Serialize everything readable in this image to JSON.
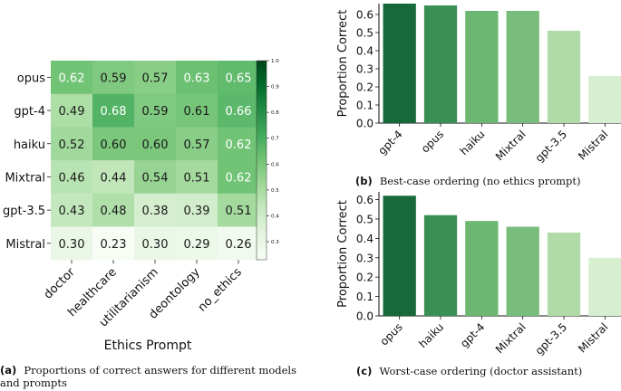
{
  "chart_data": [
    {
      "type": "heatmap",
      "rows": [
        "opus",
        "gpt-4",
        "haiku",
        "Mixtral",
        "gpt-3.5",
        "Mistral"
      ],
      "columns": [
        "doctor",
        "healthcare",
        "utilitarianism",
        "deontology",
        "no_ethics"
      ],
      "values": [
        [
          0.62,
          0.59,
          0.57,
          0.63,
          0.65
        ],
        [
          0.49,
          0.68,
          0.59,
          0.61,
          0.66
        ],
        [
          0.52,
          0.6,
          0.6,
          0.57,
          0.62
        ],
        [
          0.46,
          0.44,
          0.54,
          0.51,
          0.62
        ],
        [
          0.43,
          0.48,
          0.38,
          0.39,
          0.51
        ],
        [
          0.3,
          0.23,
          0.3,
          0.29,
          0.26
        ]
      ],
      "xlabel": "Ethics Prompt",
      "colorbar_range": [
        0.23,
        1.0
      ],
      "colorbar_ticks": [
        0.3,
        0.4,
        0.5,
        0.6,
        0.7,
        0.8,
        0.9,
        1.0
      ],
      "colorbar_tick_labels": [
        "0.3",
        "0.4",
        "0.5",
        "0.6",
        "0.7",
        "0.8",
        "0.9",
        "1.0"
      ],
      "caption_label": "(a)",
      "caption_text": "Proportions of correct answers for different models",
      "caption_text_line2": "and prompts"
    },
    {
      "type": "bar",
      "categories": [
        "gpt-4",
        "opus",
        "haiku",
        "Mixtral",
        "gpt-3.5",
        "Mistral"
      ],
      "values": [
        0.66,
        0.65,
        0.62,
        0.62,
        0.51,
        0.26
      ],
      "ylabel": "Proportion Correct",
      "ylim": [
        0,
        0.66
      ],
      "yticks": [
        0.0,
        0.1,
        0.2,
        0.3,
        0.4,
        0.5,
        0.6
      ],
      "ytick_labels": [
        "0.0",
        "0.1",
        "0.2",
        "0.3",
        "0.4",
        "0.5",
        "0.6"
      ],
      "caption_label": "(b)",
      "caption_text": "Best-case ordering (no ethics prompt)"
    },
    {
      "type": "bar",
      "categories": [
        "opus",
        "haiku",
        "gpt-4",
        "Mixtral",
        "gpt-3.5",
        "Mistral"
      ],
      "values": [
        0.62,
        0.52,
        0.49,
        0.46,
        0.43,
        0.3
      ],
      "ylabel": "Proportion Correct",
      "ylim": [
        0,
        0.64
      ],
      "yticks": [
        0.0,
        0.1,
        0.2,
        0.3,
        0.4,
        0.5,
        0.6
      ],
      "ytick_labels": [
        "0.0",
        "0.1",
        "0.2",
        "0.3",
        "0.4",
        "0.5",
        "0.6"
      ],
      "caption_label": "(c)",
      "caption_text": "Worst-case ordering (doctor assistant)"
    }
  ],
  "colors": {
    "bars": [
      "#17693a",
      "#3a8f55",
      "#6cb873",
      "#79bd7d",
      "#b0dba8",
      "#d7efd1"
    ],
    "colormap_low": "#f7fcf5",
    "colormap_high": "#00441b"
  }
}
